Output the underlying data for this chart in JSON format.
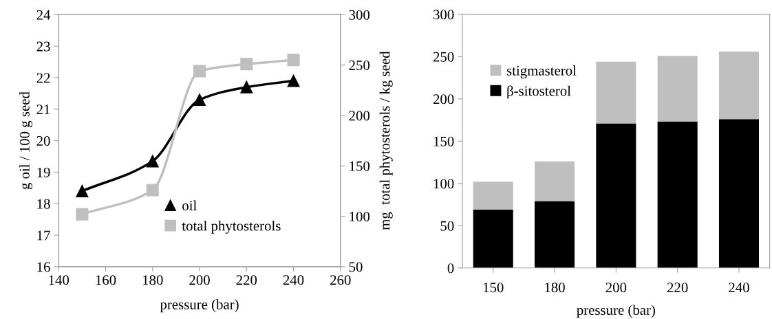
{
  "chart_data": [
    {
      "type": "line",
      "x": [
        150,
        180,
        200,
        220,
        240
      ],
      "xlabel": "pressure (bar)",
      "ylabel": "g oil / 100 g seed",
      "y2label": "mg  total phytosterols / kg seed",
      "xlim": [
        140,
        260
      ],
      "xticks": [
        140,
        160,
        180,
        200,
        220,
        240,
        260
      ],
      "ylim": [
        16,
        24
      ],
      "yticks": [
        16,
        17,
        18,
        19,
        20,
        21,
        22,
        23,
        24
      ],
      "y2lim": [
        50,
        300
      ],
      "y2ticks": [
        50,
        100,
        150,
        200,
        250,
        300
      ],
      "legend": "bottom",
      "grid": false,
      "series": [
        {
          "name": "oil",
          "color": "#000000",
          "marker": "triangle",
          "values": [
            18.4,
            19.35,
            21.3,
            21.7,
            21.9
          ]
        },
        {
          "name": "total phytosterols",
          "color": "#bfbfbf",
          "marker": "square",
          "axis": "y2",
          "values": [
            102,
            126,
            244,
            251,
            255
          ]
        }
      ]
    },
    {
      "type": "bar",
      "stacked": true,
      "categories": [
        "150",
        "180",
        "200",
        "220",
        "240"
      ],
      "xlabel": "pressure (bar)",
      "ylim": [
        0,
        300
      ],
      "yticks": [
        0,
        50,
        100,
        150,
        200,
        250,
        300
      ],
      "legend": "top left",
      "grid": false,
      "series": [
        {
          "name": "β-sitosterol",
          "color": "#000000",
          "values": [
            69,
            79,
            171,
            173,
            176
          ]
        },
        {
          "name": "stigmasterol",
          "color": "#bfbfbf",
          "values": [
            33,
            47,
            73,
            78,
            80
          ]
        }
      ]
    }
  ]
}
